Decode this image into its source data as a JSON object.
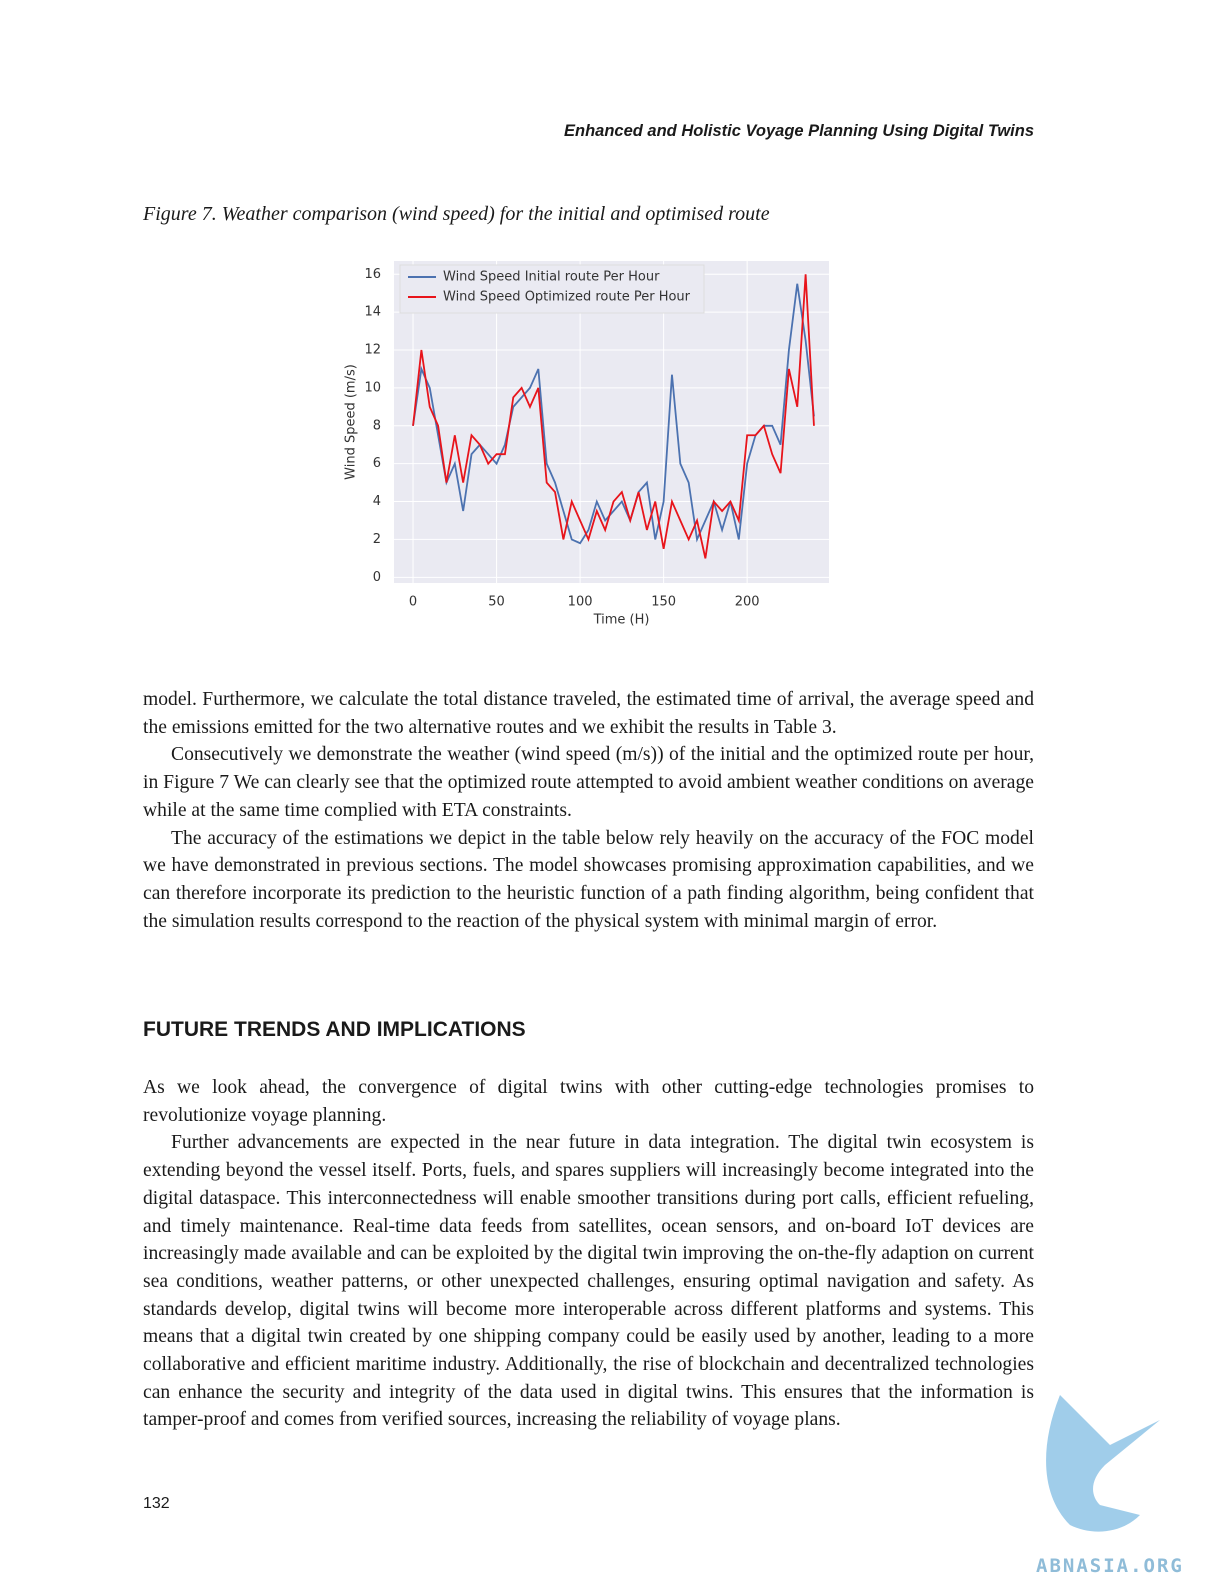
{
  "header": "Enhanced and Holistic Voyage Planning Using Digital Twins",
  "caption": "Figure 7. Weather comparison (wind speed) for the initial and optimised route",
  "chart_data": {
    "type": "line",
    "xlabel": "Time (H)",
    "ylabel": "Wind Speed (m/s)",
    "x": [
      0,
      5,
      10,
      15,
      20,
      25,
      30,
      35,
      40,
      45,
      50,
      55,
      60,
      65,
      70,
      75,
      80,
      85,
      90,
      95,
      100,
      105,
      110,
      115,
      120,
      125,
      130,
      135,
      140,
      145,
      150,
      155,
      160,
      165,
      170,
      175,
      180,
      185,
      190,
      195,
      200,
      205,
      210,
      215,
      220,
      225,
      230,
      235,
      240
    ],
    "series": [
      {
        "name": "Wind Speed Initial route Per Hour",
        "color": "#4c72b0",
        "values": [
          8,
          11,
          10,
          7.5,
          5,
          6,
          3.5,
          6.5,
          7,
          6.5,
          6,
          7,
          9,
          9.5,
          10,
          11,
          6,
          5,
          3.5,
          2,
          1.8,
          2.5,
          4,
          3,
          3.5,
          4,
          3,
          4.5,
          5,
          2,
          4,
          10.7,
          6,
          5,
          2,
          3,
          4,
          2.5,
          4,
          2,
          6,
          7.5,
          8,
          8,
          7,
          12,
          15.5,
          12.5,
          8.5
        ]
      },
      {
        "name": "Wind Speed Optimized route Per Hour",
        "color": "#e8141b",
        "values": [
          8,
          12,
          9,
          8,
          5,
          7.5,
          5,
          7.5,
          7,
          6,
          6.5,
          6.5,
          9.5,
          10,
          9,
          10,
          5,
          4.5,
          2,
          4,
          3,
          2,
          3.5,
          2.5,
          4,
          4.5,
          3,
          4.5,
          2.5,
          4,
          1.5,
          4,
          3,
          2,
          3,
          1,
          4,
          3.5,
          4,
          3,
          7.5,
          7.5,
          8,
          6.5,
          5.5,
          11,
          9,
          16,
          8
        ]
      }
    ],
    "xlim": [
      -11.4,
      249
    ],
    "ylim": [
      -0.3,
      16.7
    ],
    "xticks": [
      0,
      50,
      100,
      150,
      200
    ],
    "yticks": [
      0,
      2,
      4,
      6,
      8,
      10,
      12,
      14,
      16
    ],
    "grid": true,
    "legend": "upper left"
  },
  "body": [
    "model. Furthermore, we calculate the total distance traveled, the estimated time of arrival, the average speed and the emissions emitted for the two alternative routes and we exhibit the results in Table 3.",
    "Consecutively we demonstrate the weather (wind speed (m/s)) of the initial and the optimized route per hour, in Figure 7 We can clearly see that the optimized route attempted to avoid ambient weather conditions on average while at the same time complied with ETA constraints.",
    "The accuracy of the estimations we depict in the table below rely heavily on the accuracy of the FOC model we have demonstrated in previous sections. The model showcases promising approximation capabilities, and we can therefore incorporate its prediction to the heuristic function of a path finding algorithm, being confident that the simulation results correspond to the reaction of the physical system with minimal margin of error."
  ],
  "section_heading": "FUTURE TRENDS AND IMPLICATIONS",
  "section_body": [
    "As we look ahead, the convergence of digital twins with other cutting-edge technologies promises to revolutionize voyage planning.",
    "Further advancements are expected in the near future in data integration. The digital twin ecosystem is extending beyond the vessel itself. Ports, fuels, and spares suppliers will increasingly become integrated into the digital dataspace. This interconnectedness will enable smoother transitions during port calls, efficient refueling, and timely maintenance. Real-time data feeds from satellites, ocean sensors, and on-board IoT devices are increasingly made available and can be exploited by the digital twin improving the on-the-fly adaption on current sea conditions, weather patterns, or other unexpected challenges, ensuring optimal navigation and safety. As standards develop, digital twins will become more interoperable across different platforms and systems. This means that a digital twin created by one shipping company could be easily used by another, leading to a more collaborative and efficient maritime industry. Additionally, the rise of blockchain and decentralized technologies can enhance the security and integrity of the data used in digital twins. This ensures that the information is tamper-proof and comes from verified sources, increasing the reliability of voyage plans."
  ],
  "page_number": "132",
  "watermark": "ABNASIA.ORG"
}
